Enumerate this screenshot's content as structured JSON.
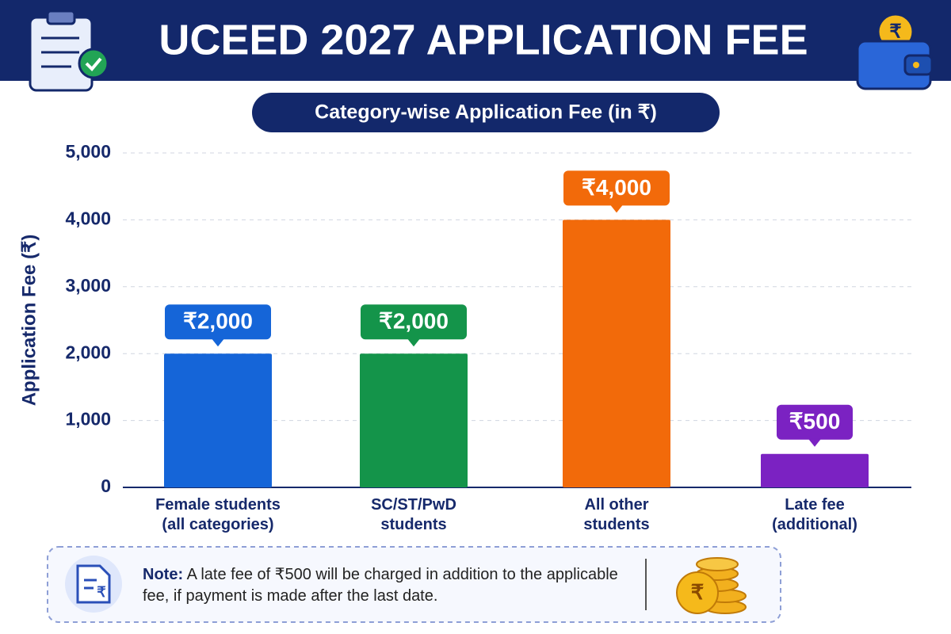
{
  "chart_data": {
    "type": "bar",
    "title": "UCEED 2027 APPLICATION FEE",
    "subtitle": "Category-wise Application Fee (in ₹)",
    "y_label": "Application Fee (₹)",
    "categories": [
      "Female students\n(all categories)",
      "SC/ST/PwD\nstudents",
      "All other\nstudents",
      "Late fee\n(additional)"
    ],
    "values": [
      2000,
      2000,
      4000,
      500
    ],
    "value_labels": [
      "₹2,000",
      "₹2,000",
      "₹4,000",
      "₹500"
    ],
    "colors": [
      "#1565d8",
      "#14944a",
      "#f26a0a",
      "#7b22c2"
    ],
    "ylim": [
      0,
      5000
    ],
    "yticks": [
      0,
      {
        "value": 1000,
        "label": "1,000"
      },
      {
        "value": 2000,
        "label": "2,000"
      },
      {
        "value": 3000,
        "label": "3,000"
      },
      {
        "value": 4000,
        "label": "4,000"
      },
      {
        "value": 5000,
        "label": "5,000"
      }
    ],
    "grid": true
  },
  "note": {
    "label": "Note:",
    "text": "A late fee of ₹500 will be charged in addition to the applicable fee, if payment is made after the last date."
  }
}
